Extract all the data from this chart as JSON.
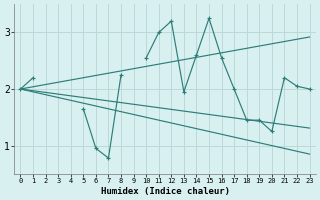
{
  "xlabel": "Humidex (Indice chaleur)",
  "bg_color": "#d9f0f0",
  "line_color": "#2d7d78",
  "grid_color": "#bcd8d8",
  "x_values": [
    0,
    1,
    2,
    3,
    4,
    5,
    6,
    7,
    8,
    9,
    10,
    11,
    12,
    13,
    14,
    15,
    16,
    17,
    18,
    19,
    20,
    21,
    22,
    23
  ],
  "series_main": [
    2.0,
    2.2,
    null,
    null,
    null,
    1.65,
    0.95,
    0.78,
    2.25,
    null,
    2.55,
    3.0,
    3.2,
    1.95,
    2.6,
    3.25,
    2.55,
    2.0,
    1.45,
    1.45,
    1.25,
    2.2,
    2.05,
    2.0
  ],
  "series_up": [
    2.0,
    2.04,
    2.08,
    2.12,
    2.16,
    2.2,
    2.24,
    2.28,
    2.32,
    2.36,
    2.4,
    2.44,
    2.48,
    2.52,
    2.56,
    2.6,
    2.64,
    2.68,
    2.72,
    2.76,
    2.8,
    2.84,
    2.88,
    2.92
  ],
  "series_down_steep": [
    2.0,
    1.95,
    1.9,
    1.85,
    1.8,
    1.75,
    1.7,
    1.65,
    1.6,
    1.55,
    1.5,
    1.45,
    1.4,
    1.35,
    1.3,
    1.25,
    1.2,
    1.15,
    1.1,
    1.05,
    1.0,
    0.95,
    0.9,
    0.85
  ],
  "series_down_mild": [
    2.0,
    1.97,
    1.94,
    1.91,
    1.88,
    1.85,
    1.82,
    1.79,
    1.76,
    1.73,
    1.7,
    1.67,
    1.64,
    1.61,
    1.58,
    1.55,
    1.52,
    1.49,
    1.46,
    1.43,
    1.4,
    1.37,
    1.34,
    1.31
  ],
  "ylim": [
    0.5,
    3.5
  ],
  "xlim": [
    -0.5,
    23.5
  ],
  "yticks": [
    1,
    2,
    3
  ],
  "xticks": [
    0,
    1,
    2,
    3,
    4,
    5,
    6,
    7,
    8,
    9,
    10,
    11,
    12,
    13,
    14,
    15,
    16,
    17,
    18,
    19,
    20,
    21,
    22,
    23
  ]
}
